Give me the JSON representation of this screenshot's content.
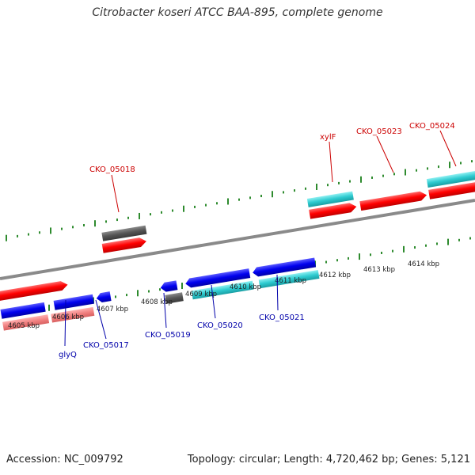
{
  "title": "Citrobacter koseri ATCC BAA-895, complete genome",
  "footer": {
    "accession": "Accession: NC_009792",
    "summary": "Topology: circular; Length: 4,720,462 bp; Genes: 5,121"
  },
  "colors": {
    "backbone": "#808080",
    "tick": "#2e8b2e",
    "forward_gene": "#ff0000",
    "forward_cds": "#2ecbd0",
    "reverse_gene": "#0000ee",
    "reverse_cds": "#2ecbd0",
    "pseudo": "#555555",
    "faded_gene": "#f08080",
    "forward_label": "#cc0000",
    "reverse_label": "#0000aa",
    "kbp_label": "#222222"
  },
  "kbp_labels": [
    "4605 kbp",
    "4606 kbp",
    "4607 kbp",
    "4608 kbp",
    "4609 kbp",
    "4610 kbp",
    "4611 kbp",
    "4612 kbp",
    "4613 kbp",
    "4614 kbp"
  ],
  "forward_gene_labels": [
    "CKO_05018",
    "xylF",
    "CKO_05023",
    "CKO_05024"
  ],
  "reverse_gene_labels": [
    "glyQ",
    "CKO_05017",
    "CKO_05019",
    "CKO_05020",
    "CKO_05021"
  ]
}
